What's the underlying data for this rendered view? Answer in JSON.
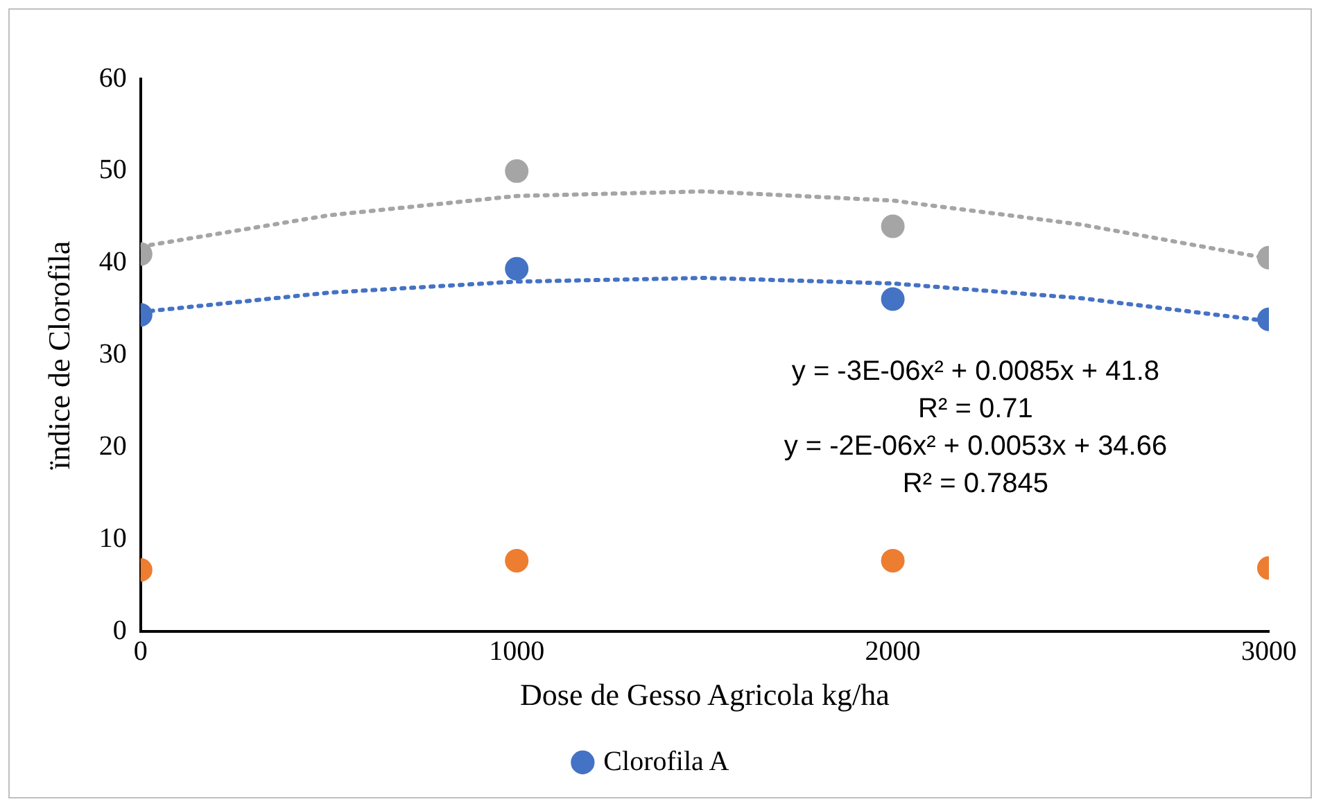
{
  "chart_data": {
    "type": "scatter",
    "xlabel": "Dose de Gesso Agricola kg/ha",
    "ylabel": "ïndice de Clorofila",
    "x": [
      0,
      1000,
      2000,
      3000
    ],
    "series": [
      {
        "name": "Clorofila A",
        "color": "#4472c4",
        "values": [
          34.4,
          39.4,
          36.1,
          33.9
        ],
        "marker": "circle"
      },
      {
        "color": "#ed7d31",
        "values": [
          6.7,
          7.7,
          7.7,
          6.9
        ],
        "marker": "circle"
      },
      {
        "color": "#a5a5a5",
        "values": [
          41.0,
          50.0,
          44.0,
          40.6
        ],
        "marker": "circle"
      },
      {
        "type": "line",
        "color": "#4472c4",
        "x": [
          0,
          500,
          1000,
          1500,
          2000,
          2500,
          3000
        ],
        "values": [
          34.7,
          36.8,
          38.0,
          38.4,
          37.8,
          36.2,
          33.7
        ],
        "line_style": "dotted",
        "marker": "none"
      },
      {
        "type": "line",
        "color": "#a5a5a5",
        "x": [
          0,
          500,
          1000,
          1500,
          2000,
          2500,
          3000
        ],
        "values": [
          41.8,
          45.2,
          47.3,
          47.8,
          46.8,
          44.2,
          40.5
        ],
        "line_style": "dotted",
        "marker": "none"
      }
    ],
    "xlim": [
      0,
      3000
    ],
    "xticks": [
      0,
      1000,
      2000,
      3000
    ],
    "ylim": [
      0,
      60
    ],
    "yticks": [
      0,
      10,
      20,
      30,
      40,
      50,
      60
    ],
    "grid": false,
    "legend": "bottom",
    "annotations": [
      "y = -3E-06x² + 0.0085x + 41.8",
      "R² = 0.71",
      "y = -2E-06x² + 0.0053x + 34.66",
      "R² = 0.7845"
    ]
  }
}
